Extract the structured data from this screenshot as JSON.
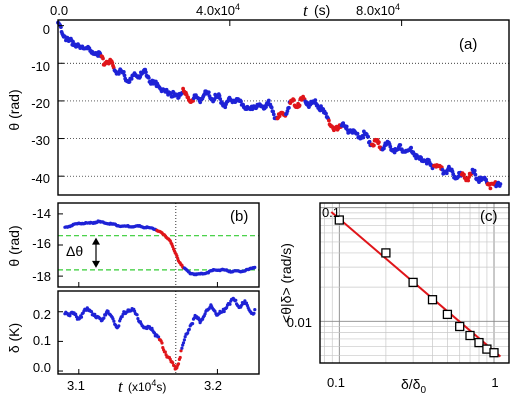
{
  "chart_data": [
    {
      "panel_label": "(a)",
      "type": "line",
      "xlabel_symbol": "t",
      "xlabel_unit": "(s)",
      "ylabel": "θ (rad)",
      "x_ticks": [
        "0.0",
        "4.0x10",
        "8.0x10"
      ],
      "x_tick_values": [
        0,
        40000,
        80000
      ],
      "x_tick_exponent": "4",
      "y_ticks": [
        "0",
        "-10",
        "-20",
        "-30",
        "-40"
      ],
      "y_tick_values": [
        0,
        -10,
        -20,
        -30,
        -40
      ],
      "xlim": [
        0,
        105000
      ],
      "ylim": [
        -45,
        1.5
      ],
      "grid": "horizontal dotted lines at y ticks",
      "colors": {
        "main": "#1e22d6",
        "highlight": "#e0151a"
      },
      "series": [
        {
          "x": [
            0,
            1500,
            3000,
            5000,
            7500,
            10000,
            12500,
            15000,
            17000,
            18500,
            20000,
            22000,
            24000,
            26500,
            29000,
            31500,
            34000,
            36500,
            39000,
            41500,
            44000,
            46500,
            49000,
            51500,
            54000,
            56500,
            59000,
            61500,
            64000,
            66500,
            69000,
            71500,
            74000,
            76500,
            79000,
            81500,
            84000,
            86500,
            89000,
            91500,
            94000,
            96500,
            99000,
            101500,
            103000
          ],
          "values": [
            0,
            -2.5,
            -4.5,
            -5.5,
            -6.5,
            -8.5,
            -10.5,
            -13,
            -14.5,
            -13,
            -12.5,
            -15,
            -16.5,
            -18.5,
            -18,
            -20,
            -18.5,
            -19,
            -20.5,
            -19.5,
            -22,
            -21.5,
            -21,
            -25,
            -21,
            -20,
            -20.5,
            -22,
            -27.5,
            -26.5,
            -28.5,
            -29.5,
            -31.5,
            -32,
            -33,
            -33,
            -35,
            -36.5,
            -38,
            -39,
            -40.5,
            -39.5,
            -41,
            -42.5,
            -42
          ]
        }
      ],
      "highlight_x_ranges": [
        [
          10000,
          13000
        ],
        [
          29000,
          31500
        ],
        [
          51000,
          53000
        ],
        [
          54000,
          57500
        ],
        [
          63000,
          66000
        ],
        [
          73000,
          75500
        ],
        [
          87500,
          89500
        ],
        [
          94000,
          96500
        ],
        [
          100000,
          102000
        ]
      ]
    },
    {
      "panel_label": "(b)",
      "type": "line",
      "ylabel": "θ (rad)",
      "y_ticks": [
        "-14",
        "-16",
        "-18"
      ],
      "y_tick_values": [
        -14,
        -16,
        -18
      ],
      "ylim": [
        -18.7,
        -13.3
      ],
      "annotation": "Δθ",
      "reference_levels": [
        -15.4,
        -17.6
      ],
      "event_time": 31.7,
      "colors": {
        "main": "#1e22d6",
        "highlight": "#e0151a",
        "reference": "#33cc33"
      },
      "series": [
        {
          "x": [
            30.9,
            30.96,
            31.02,
            31.08,
            31.14,
            31.2,
            31.26,
            31.32,
            31.38,
            31.44,
            31.5,
            31.56,
            31.62,
            31.66,
            31.68,
            31.72,
            31.76,
            31.8,
            31.86,
            31.92,
            31.98,
            32.04,
            32.1,
            32.16,
            32.22,
            32.27
          ],
          "values": [
            -14.9,
            -14.7,
            -14.6,
            -14.6,
            -14.5,
            -14.6,
            -14.7,
            -14.8,
            -14.8,
            -14.8,
            -14.9,
            -15.0,
            -15.4,
            -15.7,
            -16.2,
            -17.0,
            -17.5,
            -17.8,
            -17.9,
            -17.8,
            -17.6,
            -17.6,
            -17.7,
            -17.7,
            -17.6,
            -17.4
          ]
        }
      ],
      "highlight_x_range": [
        31.56,
        31.76
      ]
    },
    {
      "panel_label": "",
      "type": "line",
      "xlabel_symbol": "t",
      "xlabel_unit": "(x10 s)",
      "xlabel_exponent": "4",
      "ylabel": "δ (K)",
      "x_ticks": [
        "3.1",
        "3.2"
      ],
      "x_tick_values": [
        31,
        32
      ],
      "y_ticks": [
        "0.0",
        "0.1",
        "0.2"
      ],
      "y_tick_values": [
        0,
        0.1,
        0.2
      ],
      "xlim": [
        30.85,
        32.3
      ],
      "ylim": [
        -0.01,
        0.27
      ],
      "event_time": 31.7,
      "colors": {
        "main": "#1e22d6",
        "highlight": "#e0151a"
      },
      "series": [
        {
          "x": [
            30.9,
            30.96,
            31.0,
            31.04,
            31.08,
            31.12,
            31.16,
            31.2,
            31.24,
            31.28,
            31.32,
            31.36,
            31.4,
            31.44,
            31.48,
            31.52,
            31.56,
            31.6,
            31.64,
            31.68,
            31.7,
            31.72,
            31.76,
            31.8,
            31.84,
            31.88,
            31.92,
            31.96,
            32.0,
            32.04,
            32.08,
            32.12,
            32.16,
            32.2,
            32.24,
            32.27
          ],
          "values": [
            0.2,
            0.19,
            0.18,
            0.2,
            0.21,
            0.18,
            0.17,
            0.2,
            0.18,
            0.15,
            0.19,
            0.21,
            0.2,
            0.17,
            0.14,
            0.15,
            0.12,
            0.09,
            0.05,
            0.02,
            0.01,
            0.03,
            0.1,
            0.15,
            0.18,
            0.17,
            0.2,
            0.22,
            0.19,
            0.2,
            0.23,
            0.24,
            0.22,
            0.23,
            0.2,
            0.2
          ]
        }
      ],
      "highlight_x_range": [
        31.58,
        31.74
      ]
    },
    {
      "panel_label": "(c)",
      "type": "scatter",
      "x_scale": "log",
      "y_scale": "log",
      "xlabel": "δ/δ",
      "xlabel_subscript": "0",
      "ylabel": "<θ|δ> (rad/s)",
      "x_ticks": [
        "0.1",
        "1"
      ],
      "x_tick_values": [
        0.1,
        1
      ],
      "y_ticks": [
        "0.1",
        "0.01"
      ],
      "y_tick_values": [
        0.1,
        0.01
      ],
      "xlim": [
        0.075,
        1.25
      ],
      "ylim": [
        0.0043,
        0.11
      ],
      "grid": "log grid, both axes",
      "colors": {
        "markers": "#000000",
        "fit": "#e0151a"
      },
      "x": [
        0.1,
        0.2,
        0.3,
        0.4,
        0.5,
        0.6,
        0.7,
        0.8,
        0.9,
        1.0
      ],
      "values": [
        0.078,
        0.04,
        0.022,
        0.0155,
        0.0115,
        0.009,
        0.0075,
        0.0065,
        0.0057,
        0.0053
      ],
      "fit_line": {
        "x": [
          0.1,
          1.1
        ],
        "y": [
          0.078,
          0.0049
        ]
      }
    }
  ]
}
